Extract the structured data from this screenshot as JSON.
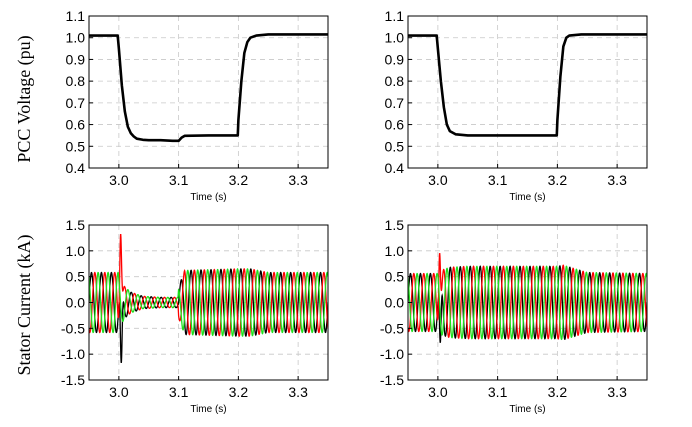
{
  "chart_data": [
    {
      "type": "line",
      "panel": "top-left",
      "ylabel": "PCC Voltage (pu)",
      "xlabel": "Time (s)",
      "xlim": [
        2.95,
        3.35
      ],
      "ylim": [
        0.4,
        1.1
      ],
      "xticks": [
        "3.0",
        "3.1",
        "3.2",
        "3.3"
      ],
      "yticks": [
        "0.4",
        "0.5",
        "0.6",
        "0.7",
        "0.8",
        "0.9",
        "1.0",
        "1.1"
      ],
      "grid": true,
      "series": [
        {
          "color": "#000000",
          "x": [
            2.95,
            2.998,
            3.0,
            3.005,
            3.01,
            3.015,
            3.02,
            3.025,
            3.03,
            3.04,
            3.05,
            3.07,
            3.09,
            3.1,
            3.105,
            3.11,
            3.15,
            3.199,
            3.2,
            3.205,
            3.21,
            3.215,
            3.22,
            3.23,
            3.25,
            3.3,
            3.35
          ],
          "y": [
            1.01,
            1.01,
            0.95,
            0.78,
            0.66,
            0.59,
            0.56,
            0.545,
            0.535,
            0.53,
            0.528,
            0.528,
            0.525,
            0.525,
            0.54,
            0.548,
            0.55,
            0.55,
            0.62,
            0.8,
            0.93,
            0.98,
            1.0,
            1.01,
            1.015,
            1.015,
            1.015
          ]
        }
      ]
    },
    {
      "type": "line",
      "panel": "top-right",
      "xlabel": "Time (s)",
      "xlim": [
        2.95,
        3.35
      ],
      "ylim": [
        0.4,
        1.1
      ],
      "xticks": [
        "3.0",
        "3.1",
        "3.2",
        "3.3"
      ],
      "yticks": [
        "0.4",
        "0.5",
        "0.6",
        "0.7",
        "0.8",
        "0.9",
        "1.0",
        "1.1"
      ],
      "grid": true,
      "series": [
        {
          "color": "#000000",
          "x": [
            2.95,
            2.998,
            3.0,
            3.005,
            3.01,
            3.015,
            3.02,
            3.03,
            3.05,
            3.1,
            3.15,
            3.199,
            3.2,
            3.205,
            3.21,
            3.215,
            3.22,
            3.24,
            3.3,
            3.35
          ],
          "y": [
            1.01,
            1.01,
            0.95,
            0.8,
            0.68,
            0.6,
            0.57,
            0.555,
            0.55,
            0.55,
            0.55,
            0.55,
            0.62,
            0.82,
            0.96,
            1.0,
            1.01,
            1.015,
            1.015,
            1.015
          ]
        }
      ]
    },
    {
      "type": "line",
      "panel": "bottom-left",
      "ylabel": "Stator Current (kA)",
      "xlabel": "Time (s)",
      "xlim": [
        2.95,
        3.35
      ],
      "ylim": [
        -1.5,
        1.5
      ],
      "xticks": [
        "3.0",
        "3.1",
        "3.2",
        "3.3"
      ],
      "yticks": [
        "-1.5",
        "-1.0",
        "-0.5",
        "0.0",
        "0.5",
        "1.0",
        "1.5"
      ],
      "grid": true,
      "waveform": {
        "frequency_hz": 60,
        "phases": [
          {
            "color": "#000000",
            "offset_deg": 0
          },
          {
            "color": "#ff0000",
            "offset_deg": 120
          },
          {
            "color": "#1ee01e",
            "offset_deg": 240
          }
        ],
        "amplitude_envelope": {
          "t": [
            2.95,
            2.999,
            3.0,
            3.01,
            3.02,
            3.04,
            3.07,
            3.099,
            3.1,
            3.11,
            3.2,
            3.22,
            3.25,
            3.35
          ],
          "a": [
            0.58,
            0.58,
            0.5,
            0.3,
            0.2,
            0.12,
            0.1,
            0.1,
            0.3,
            0.62,
            0.65,
            0.65,
            0.58,
            0.58
          ]
        },
        "spikes": [
          {
            "t": 3.003,
            "phase": 1,
            "value": 1.32
          },
          {
            "t": 3.004,
            "phase": 0,
            "value": -1.17
          }
        ]
      }
    },
    {
      "type": "line",
      "panel": "bottom-right",
      "xlabel": "Time (s)",
      "xlim": [
        2.95,
        3.35
      ],
      "ylim": [
        -1.5,
        1.5
      ],
      "xticks": [
        "3.0",
        "3.1",
        "3.2",
        "3.3"
      ],
      "yticks": [
        "-1.5",
        "-1.0",
        "-0.5",
        "0.0",
        "0.5",
        "1.0",
        "1.5"
      ],
      "grid": true,
      "waveform": {
        "frequency_hz": 60,
        "phases": [
          {
            "color": "#000000",
            "offset_deg": 0
          },
          {
            "color": "#ff0000",
            "offset_deg": 120
          },
          {
            "color": "#1ee01e",
            "offset_deg": 240
          }
        ],
        "amplitude_envelope": {
          "t": [
            2.95,
            2.999,
            3.0,
            3.02,
            3.05,
            3.2,
            3.21,
            3.25,
            3.35
          ],
          "a": [
            0.56,
            0.56,
            0.6,
            0.68,
            0.7,
            0.7,
            0.72,
            0.58,
            0.56
          ]
        },
        "spikes": [
          {
            "t": 3.003,
            "phase": 1,
            "value": 0.95
          },
          {
            "t": 3.004,
            "phase": 0,
            "value": -0.78
          }
        ]
      }
    }
  ]
}
